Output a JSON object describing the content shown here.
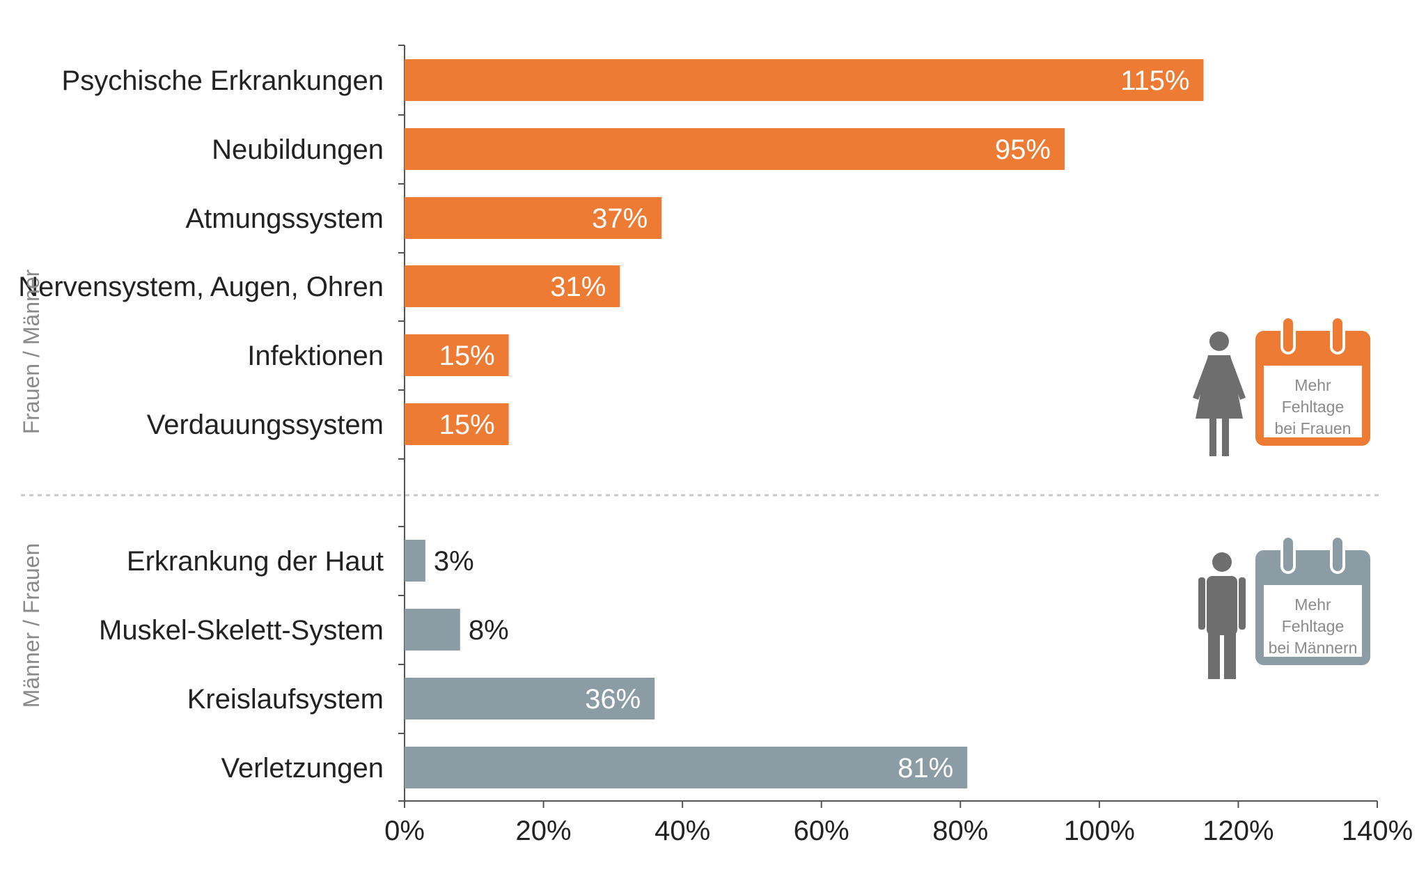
{
  "chart_data": {
    "type": "bar",
    "orientation": "horizontal",
    "groups": [
      {
        "label": "Frauen / Männer",
        "color": "#ee7b33",
        "categories": [
          "Psychische Erkrankungen",
          "Neubildungen",
          "Atmungssystem",
          "Nervensystem, Augen, Ohren",
          "Infektionen",
          "Verdauungssystem"
        ],
        "values": [
          115,
          95,
          37,
          31,
          15,
          15
        ],
        "value_labels": [
          "115%",
          "95%",
          "37%",
          "31%",
          "15%",
          "15%"
        ]
      },
      {
        "label": "Männer / Frauen",
        "color": "#8c9ca5",
        "categories": [
          "Erkrankung der Haut",
          "Muskel-Skelett-System",
          "Kreislaufsystem",
          "Verletzungen"
        ],
        "values": [
          3,
          8,
          36,
          81
        ],
        "value_labels": [
          "3%",
          "8%",
          "36%",
          "81%"
        ]
      }
    ],
    "x_ticks": [
      "0%",
      "20%",
      "40%",
      "60%",
      "80%",
      "100%",
      "120%",
      "140%"
    ],
    "xlim": [
      0,
      140
    ],
    "grid": false,
    "legend": [
      {
        "text": [
          "Mehr",
          "Fehltage",
          "bei Frauen"
        ],
        "color": "#ee7b33",
        "icon": "woman-icon"
      },
      {
        "text": [
          "Mehr",
          "Fehltage",
          "bei Männern"
        ],
        "color": "#8c9ca5",
        "icon": "man-icon"
      }
    ],
    "legend_position": "right",
    "colors": {
      "text": "#222222",
      "axis": "#555555",
      "muted": "#8a8a8a",
      "person": "#6e6e6e"
    }
  }
}
